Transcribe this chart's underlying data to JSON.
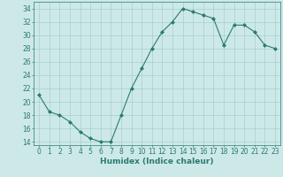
{
  "x": [
    0,
    1,
    2,
    3,
    4,
    5,
    6,
    7,
    8,
    9,
    10,
    11,
    12,
    13,
    14,
    15,
    16,
    17,
    18,
    19,
    20,
    21,
    22,
    23
  ],
  "y": [
    21,
    18.5,
    18,
    17,
    15.5,
    14.5,
    14,
    14,
    18,
    22,
    25,
    28,
    30.5,
    32,
    34,
    33.5,
    33,
    32.5,
    28.5,
    31.5,
    31.5,
    30.5,
    28.5,
    28
  ],
  "line_color": "#2d7a6e",
  "marker": "D",
  "marker_size": 2.0,
  "bg_color": "#cce9e8",
  "grid_color": "#a0c8c8",
  "xlabel": "Humidex (Indice chaleur)",
  "ylim": [
    13.5,
    35
  ],
  "yticks": [
    14,
    16,
    18,
    20,
    22,
    24,
    26,
    28,
    30,
    32,
    34
  ],
  "xlim": [
    -0.5,
    23.5
  ],
  "xticks": [
    0,
    1,
    2,
    3,
    4,
    5,
    6,
    7,
    8,
    9,
    10,
    11,
    12,
    13,
    14,
    15,
    16,
    17,
    18,
    19,
    20,
    21,
    22,
    23
  ],
  "xlabel_fontsize": 6.5,
  "tick_fontsize": 5.5
}
